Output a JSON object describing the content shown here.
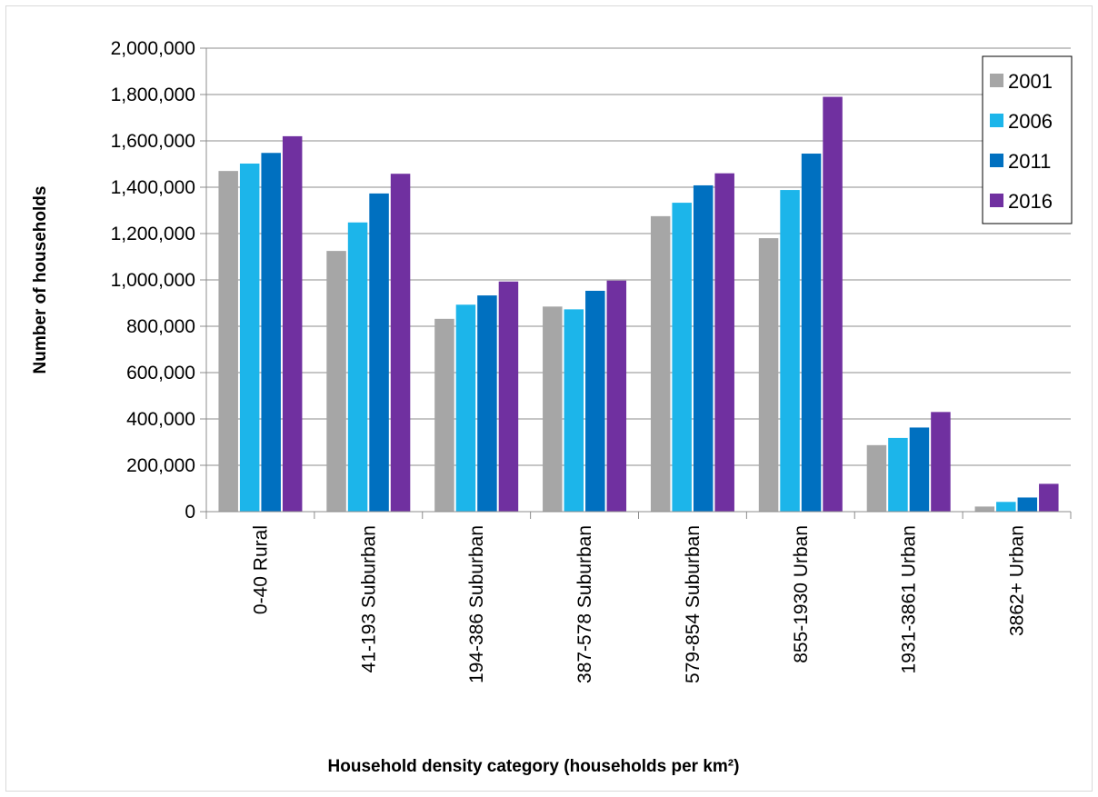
{
  "chart_data": {
    "type": "bar",
    "title": "",
    "xlabel": "Household density category (households per km²)",
    "ylabel": "Number of households",
    "ylim": [
      0,
      2000000
    ],
    "ytick_step": 200000,
    "grid": true,
    "legend_position": "top-right",
    "categories": [
      "0-40 Rural",
      "41-193 Suburban",
      "194-386 Suburban",
      "387-578 Suburban",
      "579-854 Suburban",
      "855-1930 Urban",
      "1931-3861 Urban",
      "3862+ Urban"
    ],
    "series": [
      {
        "name": "2001",
        "color": "#a6a6a6",
        "values": [
          1470000,
          1125000,
          832000,
          885000,
          1275000,
          1180000,
          287000,
          22000
        ]
      },
      {
        "name": "2006",
        "color": "#1cb5ea",
        "values": [
          1502000,
          1248000,
          893000,
          873000,
          1333000,
          1388000,
          318000,
          42000
        ]
      },
      {
        "name": "2011",
        "color": "#0070c0",
        "values": [
          1548000,
          1373000,
          933000,
          953000,
          1408000,
          1545000,
          363000,
          61000
        ]
      },
      {
        "name": "2016",
        "color": "#7030a0",
        "values": [
          1620000,
          1458000,
          993000,
          997000,
          1460000,
          1790000,
          430000,
          120000
        ]
      }
    ]
  }
}
